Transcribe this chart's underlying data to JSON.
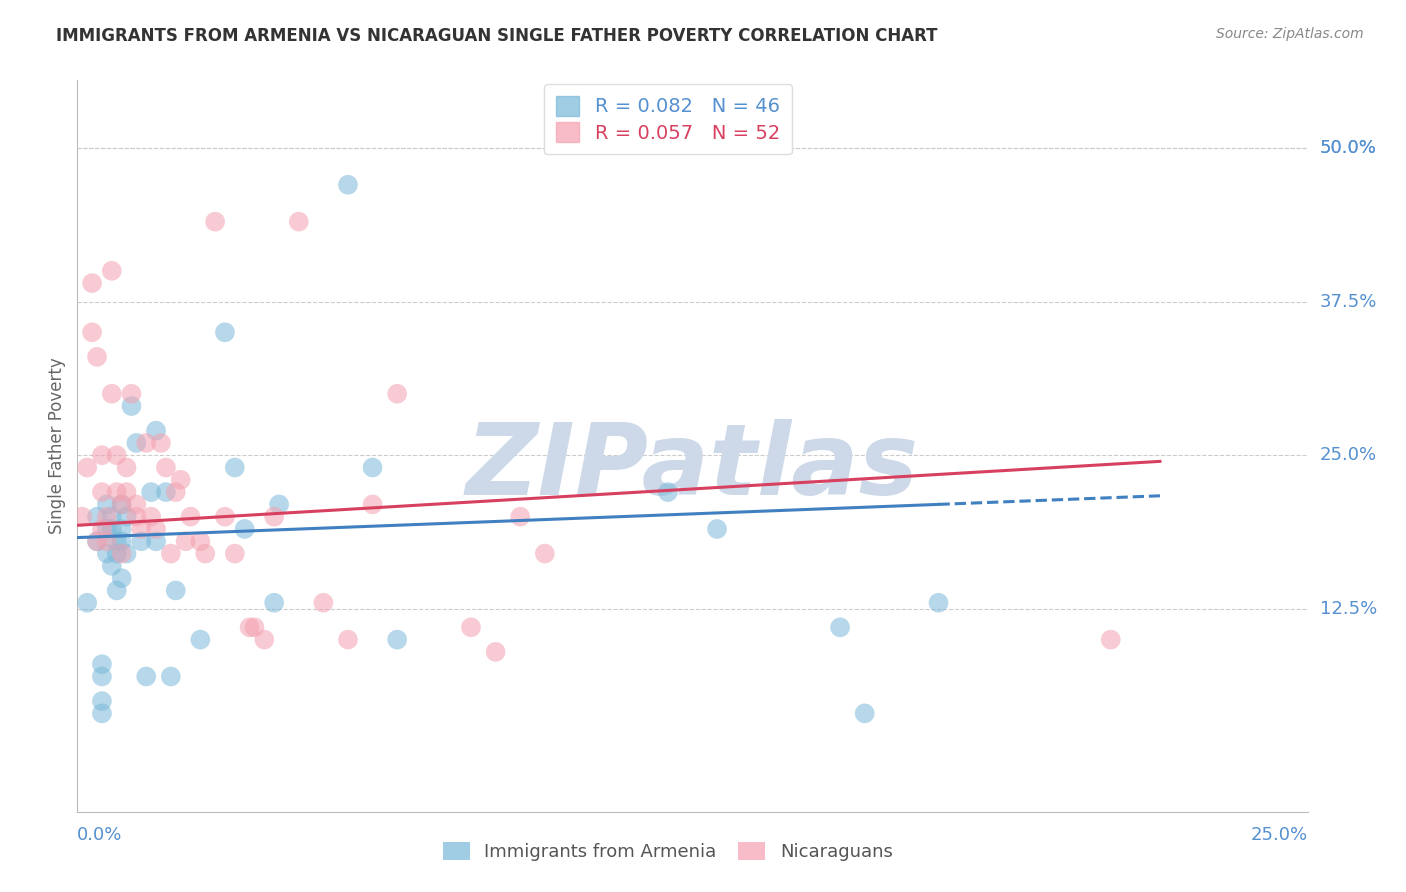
{
  "title": "IMMIGRANTS FROM ARMENIA VS NICARAGUAN SINGLE FATHER POVERTY CORRELATION CHART",
  "source": "Source: ZipAtlas.com",
  "ylabel": "Single Father Poverty",
  "y_tick_labels": [
    "50.0%",
    "37.5%",
    "25.0%",
    "12.5%"
  ],
  "y_tick_values": [
    0.5,
    0.375,
    0.25,
    0.125
  ],
  "x_range": [
    0.0,
    0.25
  ],
  "y_range": [
    -0.04,
    0.555
  ],
  "legend_r1": "R = 0.082",
  "legend_n1": "N = 46",
  "legend_r2": "R = 0.057",
  "legend_n2": "N = 52",
  "blue_color": "#7ab8d9",
  "pink_color": "#f4a0b0",
  "trend_blue": "#4080c0",
  "trend_pink": "#d84060",
  "watermark_color": "#cdd9e8",
  "background_color": "#ffffff",
  "grid_color": "#cccccc",
  "axis_label_color": "#5590d0",
  "title_color": "#333333",
  "blue_scatter_x": [
    0.002,
    0.004,
    0.004,
    0.005,
    0.005,
    0.005,
    0.005,
    0.006,
    0.006,
    0.006,
    0.007,
    0.007,
    0.007,
    0.008,
    0.008,
    0.008,
    0.009,
    0.009,
    0.009,
    0.009,
    0.01,
    0.01,
    0.011,
    0.012,
    0.013,
    0.014,
    0.015,
    0.016,
    0.016,
    0.018,
    0.019,
    0.02,
    0.025,
    0.03,
    0.032,
    0.034,
    0.04,
    0.041,
    0.055,
    0.06,
    0.065,
    0.12,
    0.13,
    0.155,
    0.16,
    0.175
  ],
  "blue_scatter_y": [
    0.13,
    0.18,
    0.2,
    0.04,
    0.05,
    0.07,
    0.08,
    0.17,
    0.19,
    0.21,
    0.16,
    0.19,
    0.2,
    0.14,
    0.17,
    0.18,
    0.15,
    0.18,
    0.19,
    0.21,
    0.17,
    0.2,
    0.29,
    0.26,
    0.18,
    0.07,
    0.22,
    0.18,
    0.27,
    0.22,
    0.07,
    0.14,
    0.1,
    0.35,
    0.24,
    0.19,
    0.13,
    0.21,
    0.47,
    0.24,
    0.1,
    0.22,
    0.19,
    0.11,
    0.04,
    0.13
  ],
  "pink_scatter_x": [
    0.001,
    0.002,
    0.003,
    0.003,
    0.004,
    0.004,
    0.005,
    0.005,
    0.005,
    0.006,
    0.006,
    0.007,
    0.007,
    0.008,
    0.008,
    0.009,
    0.009,
    0.01,
    0.01,
    0.011,
    0.012,
    0.012,
    0.013,
    0.014,
    0.015,
    0.016,
    0.017,
    0.018,
    0.019,
    0.02,
    0.021,
    0.022,
    0.023,
    0.025,
    0.026,
    0.028,
    0.03,
    0.032,
    0.035,
    0.036,
    0.038,
    0.04,
    0.045,
    0.05,
    0.055,
    0.06,
    0.065,
    0.08,
    0.085,
    0.09,
    0.095,
    0.21
  ],
  "pink_scatter_y": [
    0.2,
    0.24,
    0.35,
    0.39,
    0.18,
    0.33,
    0.19,
    0.22,
    0.25,
    0.18,
    0.2,
    0.3,
    0.4,
    0.22,
    0.25,
    0.17,
    0.21,
    0.22,
    0.24,
    0.3,
    0.2,
    0.21,
    0.19,
    0.26,
    0.2,
    0.19,
    0.26,
    0.24,
    0.17,
    0.22,
    0.23,
    0.18,
    0.2,
    0.18,
    0.17,
    0.44,
    0.2,
    0.17,
    0.11,
    0.11,
    0.1,
    0.2,
    0.44,
    0.13,
    0.1,
    0.21,
    0.3,
    0.11,
    0.09,
    0.2,
    0.17,
    0.1
  ],
  "blue_trend_x": [
    0.0,
    0.175,
    0.22
  ],
  "blue_trend_y": [
    0.183,
    0.21,
    0.217
  ],
  "pink_trend_x": [
    0.0,
    0.22
  ],
  "pink_trend_y": [
    0.193,
    0.245
  ],
  "legend1_label1": "R = 0.082   N = 46",
  "legend1_label2": "R = 0.057   N = 52",
  "bottom_label1": "Immigrants from Armenia",
  "bottom_label2": "Nicaraguans"
}
